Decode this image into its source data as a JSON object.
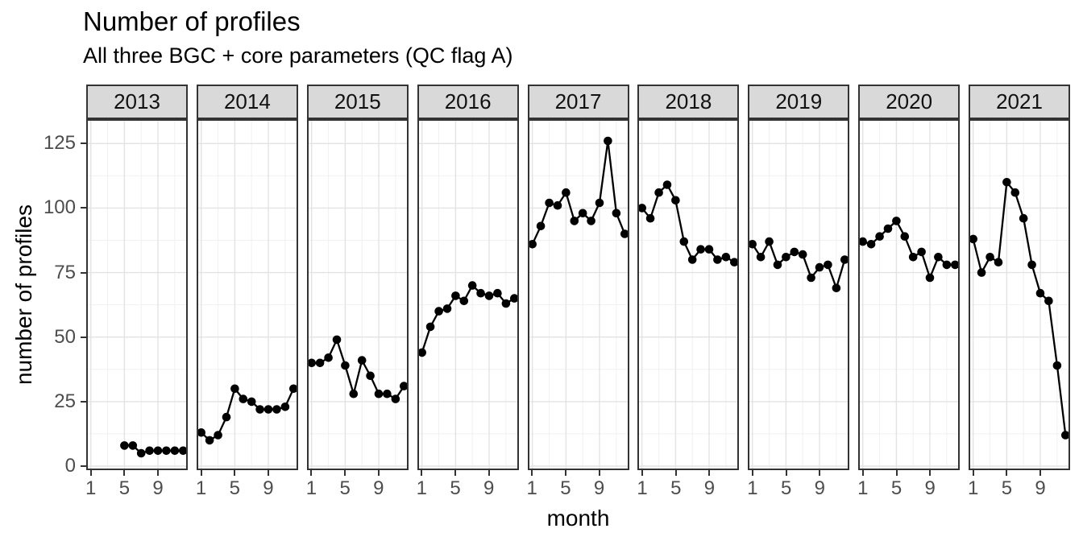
{
  "chart_data": {
    "type": "line",
    "title": "Number of profiles",
    "subtitle": "All three BGC + core parameters (QC flag A)",
    "xlabel": "month",
    "ylabel": "number of profiles",
    "x_ticks": [
      1,
      5,
      9
    ],
    "y_ticks": [
      0,
      25,
      50,
      75,
      100,
      125
    ],
    "xlim": [
      1,
      12
    ],
    "ylim": [
      0,
      132
    ],
    "grid": "major and minor, light gray on white",
    "legend": "none",
    "point_color": "#000000",
    "line_color": "#000000",
    "strip_fill": "#d9d9d9",
    "panel_border_color": "#333333",
    "major_grid_color": "#e3e3e3",
    "minor_grid_color": "#f1f1f1",
    "axis_text_color": "#4d4d4d",
    "facets": [
      {
        "label": "2013",
        "months": [
          5,
          6,
          7,
          8,
          9,
          10,
          11,
          12
        ],
        "values": [
          8,
          8,
          5,
          6,
          6,
          6,
          6,
          6
        ]
      },
      {
        "label": "2014",
        "months": [
          1,
          2,
          3,
          4,
          5,
          6,
          7,
          8,
          9,
          10,
          11,
          12
        ],
        "values": [
          13,
          10,
          12,
          19,
          30,
          26,
          25,
          22,
          22,
          22,
          23,
          30
        ]
      },
      {
        "label": "2015",
        "months": [
          1,
          2,
          3,
          4,
          5,
          6,
          7,
          8,
          9,
          10,
          11,
          12
        ],
        "values": [
          40,
          40,
          42,
          49,
          39,
          28,
          41,
          35,
          28,
          28,
          26,
          31
        ]
      },
      {
        "label": "2016",
        "months": [
          1,
          2,
          3,
          4,
          5,
          6,
          7,
          8,
          9,
          10,
          11,
          12
        ],
        "values": [
          44,
          54,
          60,
          61,
          66,
          64,
          70,
          67,
          66,
          67,
          63,
          65
        ]
      },
      {
        "label": "2017",
        "months": [
          1,
          2,
          3,
          4,
          5,
          6,
          7,
          8,
          9,
          10,
          11,
          12
        ],
        "values": [
          86,
          93,
          102,
          101,
          106,
          95,
          98,
          95,
          102,
          126,
          98,
          90
        ]
      },
      {
        "label": "2018",
        "months": [
          1,
          2,
          3,
          4,
          5,
          6,
          7,
          8,
          9,
          10,
          11,
          12
        ],
        "values": [
          100,
          96,
          106,
          109,
          103,
          87,
          80,
          84,
          84,
          80,
          81,
          79
        ]
      },
      {
        "label": "2019",
        "months": [
          1,
          2,
          3,
          4,
          5,
          6,
          7,
          8,
          9,
          10,
          11,
          12
        ],
        "values": [
          86,
          81,
          87,
          78,
          81,
          83,
          82,
          73,
          77,
          78,
          69,
          80
        ]
      },
      {
        "label": "2020",
        "months": [
          1,
          2,
          3,
          4,
          5,
          6,
          7,
          8,
          9,
          10,
          11,
          12
        ],
        "values": [
          87,
          86,
          89,
          92,
          95,
          89,
          81,
          83,
          73,
          81,
          78,
          78
        ]
      },
      {
        "label": "2021",
        "months": [
          1,
          2,
          3,
          4,
          5,
          6,
          7,
          8,
          9,
          10,
          11,
          12
        ],
        "values": [
          88,
          75,
          81,
          79,
          110,
          106,
          96,
          78,
          67,
          64,
          39,
          12
        ]
      }
    ]
  }
}
